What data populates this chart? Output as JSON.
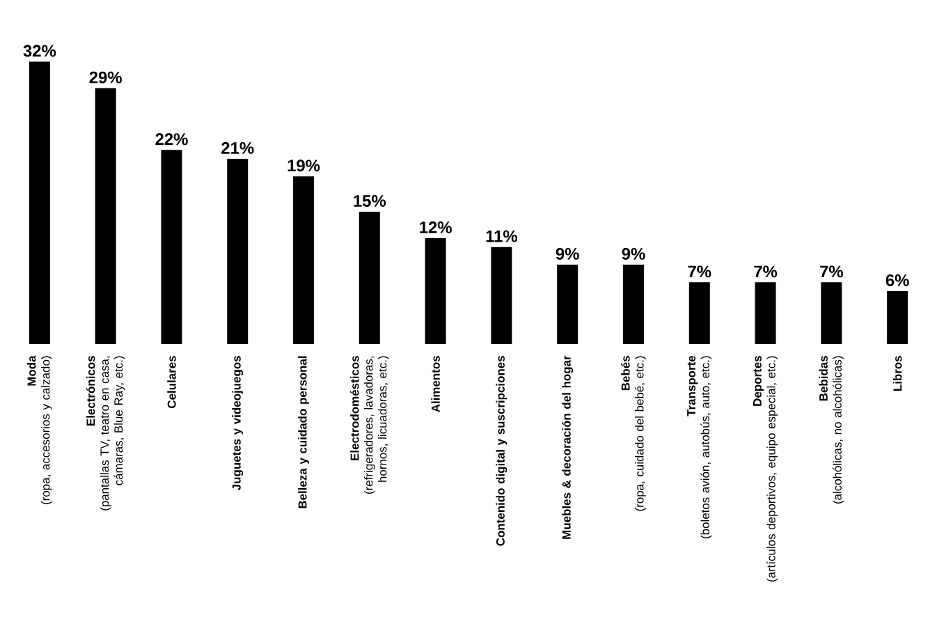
{
  "chart_data": {
    "type": "bar",
    "categories": [
      "**Moda**\n(ropa, accesorios y calzado)",
      "**Electrónicos**\n(pantallas TV, teatro en casa, cámaras, Blue Ray, etc.)",
      "Celulares",
      "Juguetes y videojuegos",
      "Belleza y cuidado personal",
      "**Electrodomésticos**\n(refrigeradores, lavadoras, hornos, licuadoras, etc.)",
      "Alimentos",
      "Contenido digital y suscripciones",
      "Muebles & decoración del hogar",
      "**Bebés**\n(ropa, cuidado del bebé, etc.)",
      "**Transporte**\n(boletos avión, autobús, auto, etc.)",
      "**Deportes**\n(artículos deportivos, equipo especial, etc.)",
      "**Bebidas**\n(alcohólicas, no alcohólicas)",
      "Libros"
    ],
    "values": [
      32,
      29,
      22,
      21,
      19,
      15,
      12,
      11,
      9,
      9,
      7,
      7,
      7,
      6
    ],
    "value_labels": [
      "32%",
      "29%",
      "22%",
      "21%",
      "19%",
      "15%",
      "12%",
      "11%",
      "9%",
      "9%",
      "7%",
      "7%",
      "7%",
      "6%"
    ],
    "color": "#000000"
  }
}
